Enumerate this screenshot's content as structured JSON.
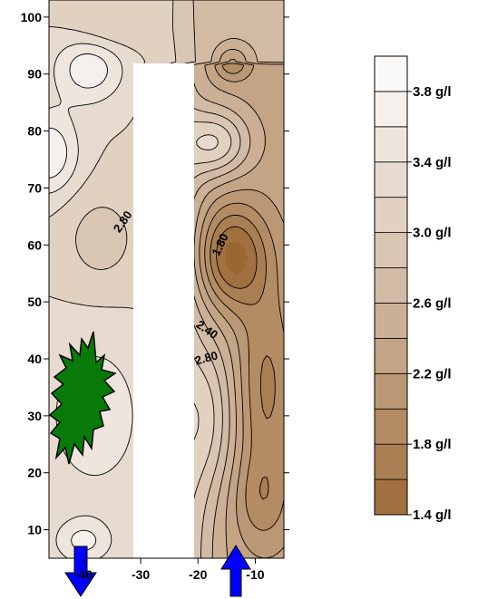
{
  "chart_data": {
    "type": "heatmap",
    "title": "",
    "xlabel": "",
    "ylabel": "",
    "xlim": [
      -46,
      -5
    ],
    "ylim": [
      5,
      103
    ],
    "x_ticks": [
      -40,
      -30,
      -20,
      -10
    ],
    "x_tick_labels": [
      "-40",
      "-30",
      "-20",
      "-10"
    ],
    "y_ticks": [
      10,
      20,
      30,
      40,
      50,
      60,
      70,
      80,
      90,
      100
    ],
    "y_tick_labels": [
      "10",
      "20",
      "30",
      "40",
      "50",
      "60",
      "70",
      "80",
      "90",
      "100"
    ],
    "value_unit": "g/l",
    "contour_labels": [
      {
        "text": "2.80",
        "x": -33,
        "y": 64,
        "angle": -55
      },
      {
        "text": "1.80",
        "x": -16,
        "y": 60,
        "angle": -65
      },
      {
        "text": "2.40",
        "x": -18.5,
        "y": 45,
        "angle": 35
      },
      {
        "text": "2.80",
        "x": -18.5,
        "y": 40,
        "angle": -15
      }
    ],
    "colorbar": {
      "min": 1.4,
      "max": 4.0,
      "step": 0.2,
      "tick_values": [
        1.4,
        1.8,
        2.2,
        2.6,
        3.0,
        3.4,
        3.8
      ],
      "tick_labels": [
        "1.4 g/l",
        "1.8 g/l",
        "2.2 g/l",
        "2.6 g/l",
        "3.0 g/l",
        "3.4 g/l",
        "3.8 g/l"
      ],
      "color_low": "#9a6632",
      "color_high": "#ffffff"
    },
    "annotations": [
      {
        "kind": "well-column-gap",
        "color": "#ffffff"
      },
      {
        "kind": "burst-marker",
        "color": "#087a08"
      },
      {
        "kind": "arrow-down",
        "x": -39.5,
        "color": "#0000ff"
      },
      {
        "kind": "arrow-up",
        "x": -14,
        "color": "#0000ff"
      }
    ]
  }
}
